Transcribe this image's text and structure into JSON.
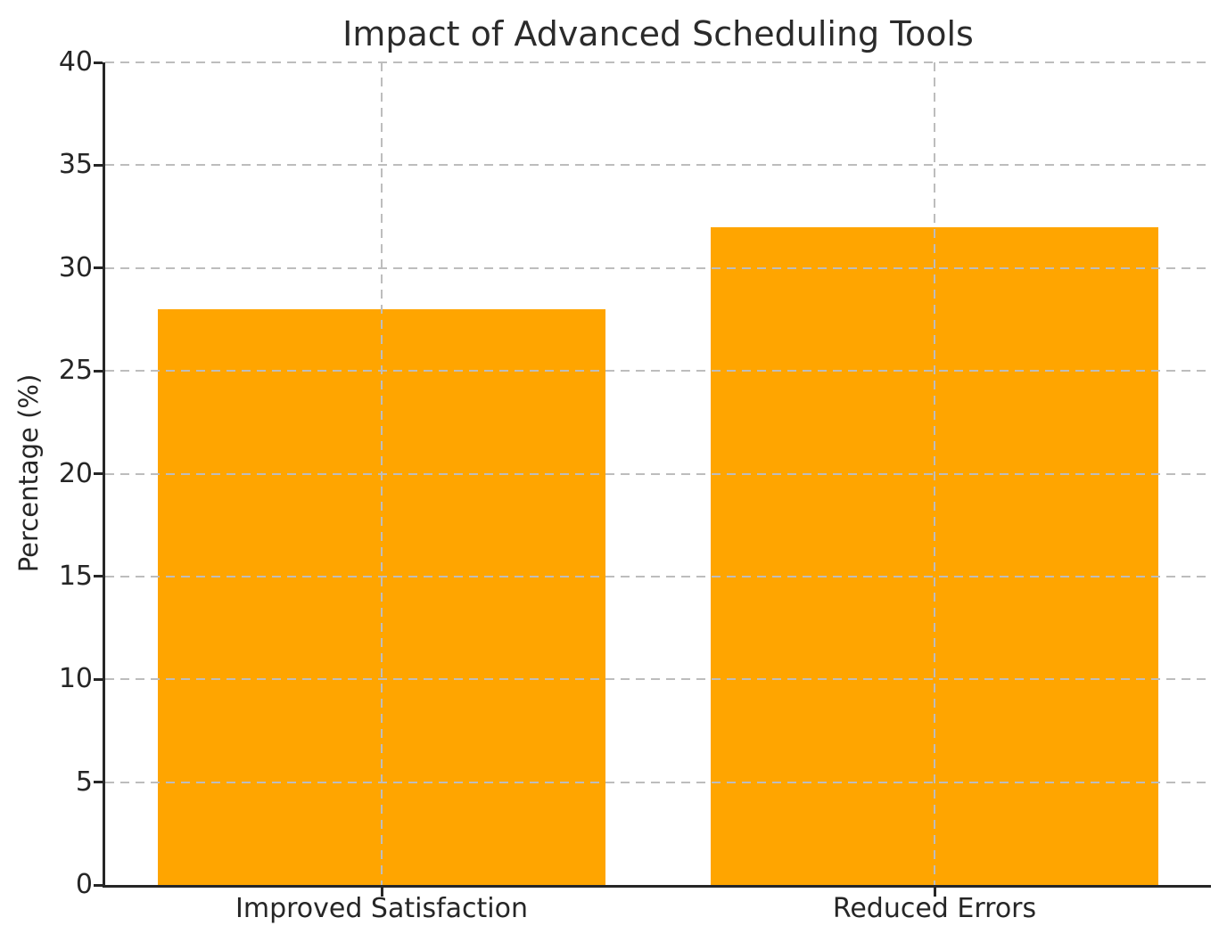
{
  "chart_data": {
    "type": "bar",
    "title": "Impact of Advanced Scheduling Tools",
    "categories": [
      "Improved Satisfaction",
      "Reduced Errors"
    ],
    "values": [
      28,
      32
    ],
    "xlabel": "",
    "ylabel": "Percentage (%)",
    "ylim": [
      0,
      40
    ],
    "yticks": [
      0,
      5,
      10,
      15,
      20,
      25,
      30,
      35,
      40
    ],
    "bar_color": "#FFA500",
    "grid": true,
    "grid_color": "#bdbdbd",
    "grid_style": "dashed",
    "axis_color": "#262626",
    "text_color": "#262626",
    "background": "#ffffff",
    "legend": "none",
    "bar_width_fraction": 0.81
  }
}
